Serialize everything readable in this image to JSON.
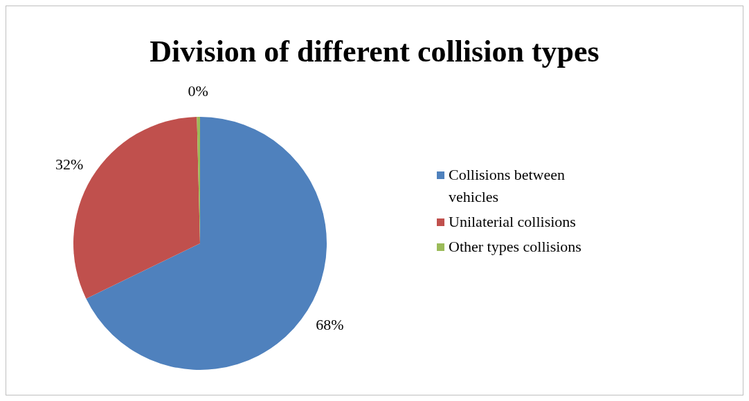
{
  "chart_data": {
    "type": "pie",
    "title": "Division of different collision types",
    "categories": [
      "Collisions between vehicles",
      "Unilaterial collisions",
      "Other types collisions"
    ],
    "values": [
      67.8,
      31.8,
      0.4
    ],
    "value_labels": [
      "68%",
      "32%",
      "0%"
    ],
    "colors": [
      "#4f81bd",
      "#c0504d",
      "#9bbb59"
    ],
    "legend": "right"
  }
}
